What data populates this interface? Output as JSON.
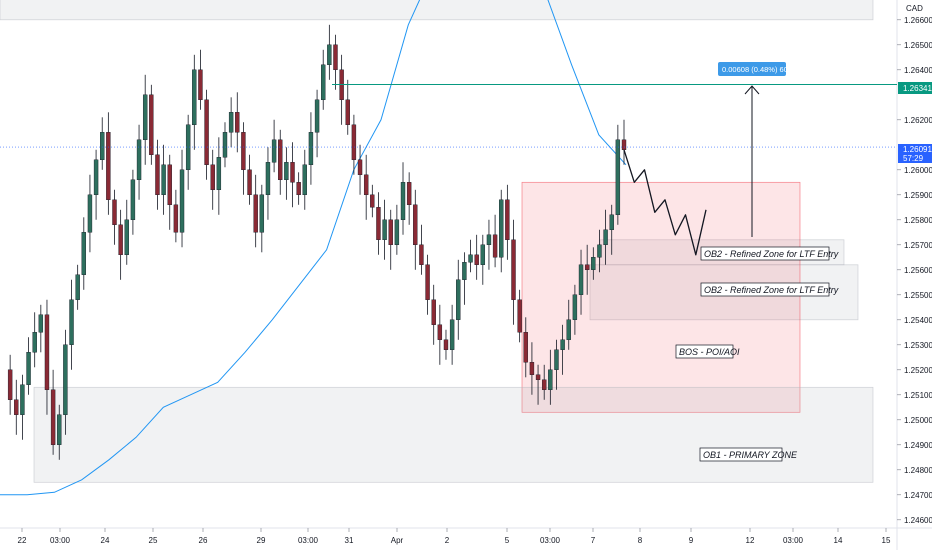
{
  "chart_data": {
    "type": "candlestick",
    "currency_label": "CAD",
    "x_ticks": [
      "22",
      "03:00",
      "24",
      "25",
      "26",
      "29",
      "03:00",
      "31",
      "Apr",
      "2",
      "5",
      "03:00",
      "7",
      "8",
      "9",
      "12",
      "03:00",
      "14",
      "15"
    ],
    "y_ticks": [
      "1.26600",
      "1.26500",
      "1.26400",
      "1.26200",
      "1.26000",
      "1.25900",
      "1.25800",
      "1.25700",
      "1.25600",
      "1.25500",
      "1.25400",
      "1.25300",
      "1.25200",
      "1.25100",
      "1.25000",
      "1.24900",
      "1.24800",
      "1.24700",
      "1.24600"
    ],
    "price_tags": [
      {
        "label": "1.26341",
        "value": 1.26341,
        "color": "#089981"
      },
      {
        "label": "1.26091",
        "sublabel": "57:29",
        "value": 1.26091,
        "color": "#2962ff"
      }
    ],
    "measure_label": "0.00608 (0.48%) 60.8",
    "zones": [
      {
        "label": "OB2 - Refined Zone for LTF Entry",
        "from": 1.2562,
        "to": 1.2572,
        "color": "#b2b5be"
      },
      {
        "label": "OB2 - Refined Zone for LTF Entry",
        "from": 1.254,
        "to": 1.2562,
        "color": "#b2b5be"
      },
      {
        "label": "BOS - POI/AOI",
        "from": 1.2503,
        "to": 1.2595,
        "color": "#f23645"
      },
      {
        "label": "OB1 - PRIMARY ZONE",
        "from": 1.2475,
        "to": 1.2513,
        "color": "#b2b5be"
      },
      {
        "label": "",
        "from": 1.266,
        "to": 1.268,
        "color": "#b2b5be"
      }
    ],
    "ma_series": [
      1.251,
      1.251,
      1.2511,
      1.2516,
      1.2524,
      1.2533,
      1.2545,
      1.255,
      1.2555,
      1.2567,
      1.258,
      1.2594,
      1.2608,
      1.264,
      1.266,
      1.2698,
      1.2722,
      1.2745,
      1.2752,
      1.2738,
      1.2712,
      1.2682,
      1.2654,
      1.2642
    ],
    "price_path": [
      1.252,
      1.2508,
      1.2502,
      1.2514,
      1.2527,
      1.2535,
      1.2542,
      1.2512,
      1.249,
      1.2502,
      1.253,
      1.2548,
      1.2558,
      1.2575,
      1.259,
      1.2604,
      1.2615,
      1.2588,
      1.2578,
      1.2566,
      1.258,
      1.2596,
      1.2612,
      1.263,
      1.2606,
      1.259,
      1.2602,
      1.2586,
      1.2575,
      1.26,
      1.2618,
      1.264,
      1.2628,
      1.2602,
      1.2592,
      1.2605,
      1.2615,
      1.2623,
      1.2615,
      1.26,
      1.259,
      1.2575,
      1.259,
      1.2603,
      1.2612,
      1.2596,
      1.2603,
      1.2595,
      1.259,
      1.2602,
      1.2615,
      1.2628,
      1.2642,
      1.265,
      1.264,
      1.2628,
      1.2618,
      1.2604,
      1.2598,
      1.259,
      1.2585,
      1.2572,
      1.258,
      1.257,
      1.258,
      1.2595,
      1.2586,
      1.257,
      1.2562,
      1.2548,
      1.2538,
      1.2532,
      1.2528,
      1.254,
      1.2556,
      1.2563,
      1.2566,
      1.2562,
      1.257,
      1.2574,
      1.2565,
      1.2588,
      1.2572,
      1.2548,
      1.2535,
      1.2523,
      1.2518,
      1.2516,
      1.2512,
      1.252,
      1.2528,
      1.2532,
      1.254,
      1.255,
      1.2562,
      1.256,
      1.2565,
      1.257,
      1.2576,
      1.2582,
      1.2612,
      1.2608
    ],
    "projection_path": [
      1.2608,
      1.2595,
      1.26,
      1.2583,
      1.2588,
      1.2574,
      1.2582,
      1.2566,
      1.2584
    ],
    "xlabel": "",
    "ylabel": ""
  }
}
